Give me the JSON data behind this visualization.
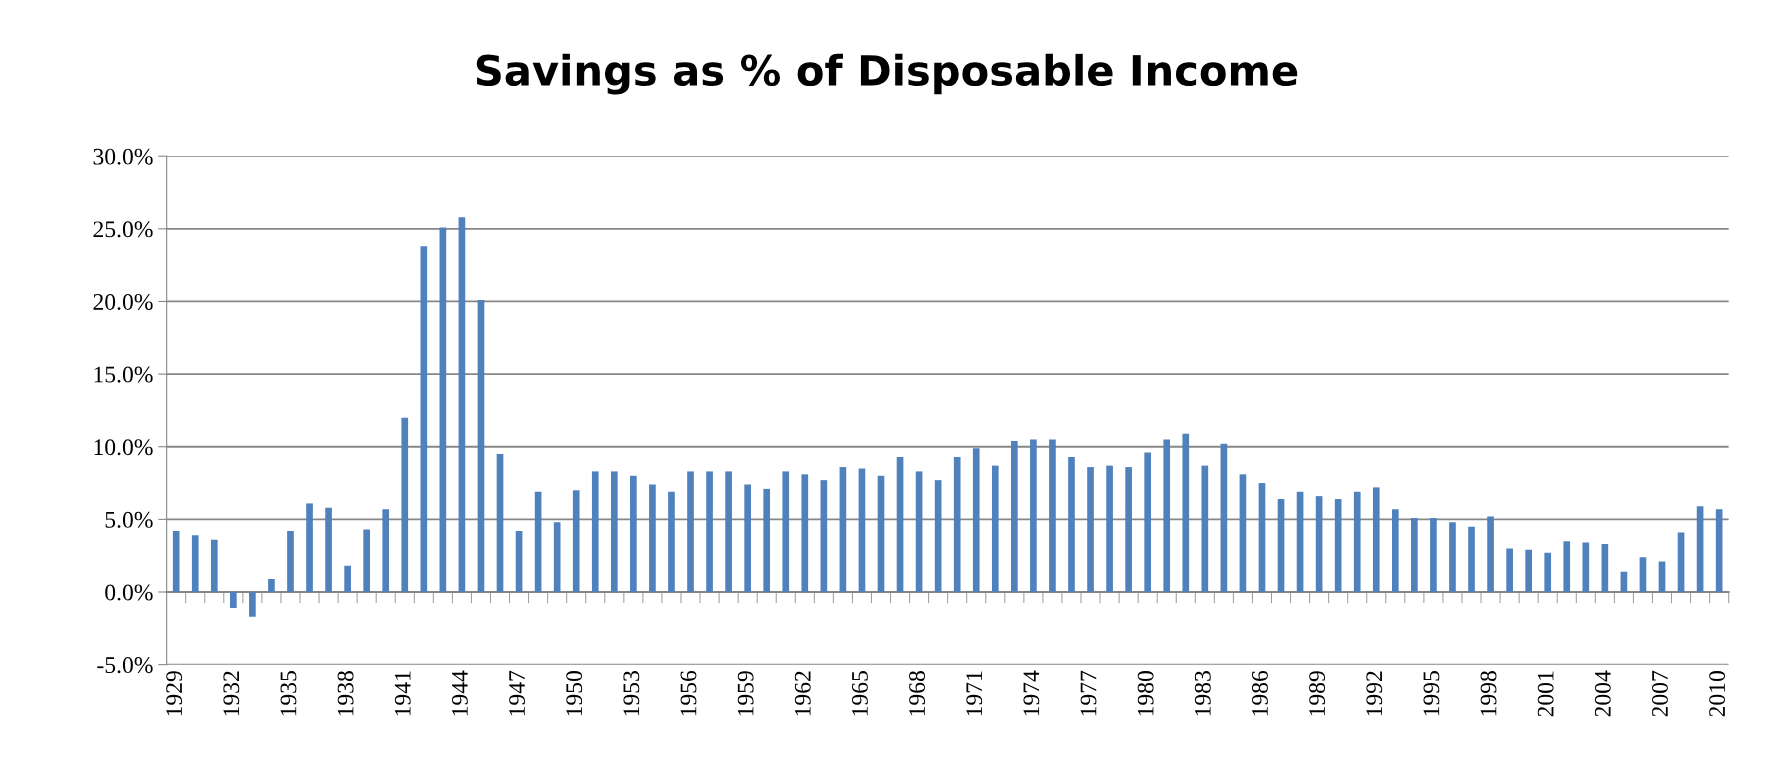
{
  "chart_data": {
    "type": "bar",
    "title": "Savings as % of Disposable Income",
    "categories": [
      "1929",
      null,
      null,
      "1932",
      null,
      null,
      "1935",
      null,
      null,
      "1938",
      null,
      null,
      "1941",
      null,
      null,
      "1944",
      null,
      null,
      "1947",
      null,
      null,
      "1950",
      null,
      null,
      "1953",
      null,
      null,
      "1956",
      null,
      null,
      "1959",
      null,
      null,
      "1962",
      null,
      null,
      "1965",
      null,
      null,
      "1968",
      null,
      null,
      "1971",
      null,
      null,
      "1974",
      null,
      null,
      "1977",
      null,
      null,
      "1980",
      null,
      null,
      "1983",
      null,
      null,
      "1986",
      null,
      null,
      "1989",
      null,
      null,
      "1992",
      null,
      null,
      "1995",
      null,
      null,
      "1998",
      null,
      null,
      "2001",
      null,
      null,
      "2004",
      null,
      null,
      "2007",
      null,
      null,
      "2010"
    ],
    "values": [
      4.2,
      3.9,
      3.6,
      -1.1,
      -1.7,
      0.9,
      4.2,
      6.1,
      5.8,
      1.8,
      4.3,
      5.7,
      12.0,
      23.8,
      25.1,
      25.8,
      20.1,
      9.5,
      4.2,
      6.9,
      4.8,
      7.0,
      8.3,
      8.3,
      8.0,
      7.4,
      6.9,
      8.3,
      8.3,
      8.3,
      7.4,
      7.1,
      8.3,
      8.1,
      7.7,
      8.6,
      8.5,
      8.0,
      9.3,
      8.3,
      7.7,
      9.3,
      9.9,
      8.7,
      10.4,
      10.5,
      10.5,
      9.3,
      8.6,
      8.7,
      8.6,
      9.6,
      10.5,
      10.9,
      8.7,
      10.2,
      8.1,
      7.5,
      6.4,
      6.9,
      6.6,
      6.4,
      6.9,
      7.2,
      5.7,
      5.1,
      5.1,
      4.8,
      4.5,
      5.2,
      3.0,
      2.9,
      2.7,
      3.5,
      3.4,
      3.3,
      1.4,
      2.4,
      2.1,
      4.1,
      5.9,
      5.7
    ],
    "color": "#4f81bd",
    "ylim": [
      -5,
      30
    ],
    "yticks": [
      {
        "value": -5,
        "label": "-5.0%"
      },
      {
        "value": 0,
        "label": "0.0%"
      },
      {
        "value": 5,
        "label": "5.0%"
      },
      {
        "value": 10,
        "label": "10.0%"
      },
      {
        "value": 15,
        "label": "15.0%"
      },
      {
        "value": 20,
        "label": "20.0%"
      },
      {
        "value": 25,
        "label": "25.0%"
      },
      {
        "value": 30,
        "label": "30.0%"
      }
    ],
    "grid": "y",
    "legend": false
  }
}
